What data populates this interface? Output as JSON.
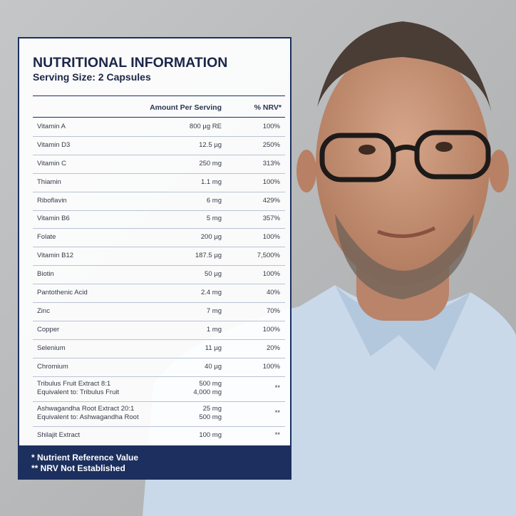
{
  "panel": {
    "title": "NUTRITIONAL INFORMATION",
    "subtitle": "Serving Size: 2 Capsules"
  },
  "table": {
    "header": [
      "Amount Per Serving",
      "% NRV*"
    ],
    "rows": [
      {
        "name": [
          "Vitamin A"
        ],
        "amount": [
          "800 µg RE"
        ],
        "nrv": "100%"
      },
      {
        "name": [
          "Vitamin D3"
        ],
        "amount": [
          "12.5 µg"
        ],
        "nrv": "250%"
      },
      {
        "name": [
          "Vitamin C"
        ],
        "amount": [
          "250 mg"
        ],
        "nrv": "313%"
      },
      {
        "name": [
          "Thiamin"
        ],
        "amount": [
          "1.1 mg"
        ],
        "nrv": "100%"
      },
      {
        "name": [
          "Riboflavin"
        ],
        "amount": [
          "6 mg"
        ],
        "nrv": "429%"
      },
      {
        "name": [
          "Vitamin B6"
        ],
        "amount": [
          "5 mg"
        ],
        "nrv": "357%"
      },
      {
        "name": [
          "Folate"
        ],
        "amount": [
          "200 µg"
        ],
        "nrv": "100%"
      },
      {
        "name": [
          "Vitamin B12"
        ],
        "amount": [
          "187.5 µg"
        ],
        "nrv": "7,500%"
      },
      {
        "name": [
          "Biotin"
        ],
        "amount": [
          "50 µg"
        ],
        "nrv": "100%"
      },
      {
        "name": [
          "Pantothenic Acid"
        ],
        "amount": [
          "2.4 mg"
        ],
        "nrv": "40%"
      },
      {
        "name": [
          "Zinc"
        ],
        "amount": [
          "7 mg"
        ],
        "nrv": "70%"
      },
      {
        "name": [
          "Copper"
        ],
        "amount": [
          "1 mg"
        ],
        "nrv": "100%"
      },
      {
        "name": [
          "Selenium"
        ],
        "amount": [
          "11 µg"
        ],
        "nrv": "20%"
      },
      {
        "name": [
          "Chromium"
        ],
        "amount": [
          "40 µg"
        ],
        "nrv": "100%"
      },
      {
        "name": [
          "Tribulus Fruit Extract 8:1",
          "Equivalent to: Tribulus Fruit"
        ],
        "amount": [
          "500 mg",
          "4,000 mg"
        ],
        "nrv": "**"
      },
      {
        "name": [
          "Ashwagandha Root Extract 20:1",
          "Equivalent to: Ashwagandha Root"
        ],
        "amount": [
          "25 mg",
          "500 mg"
        ],
        "nrv": "**"
      },
      {
        "name": [
          "Shilajit Extract"
        ],
        "amount": [
          "100 mg"
        ],
        "nrv": "**"
      }
    ]
  },
  "footer": [
    "* Nutrient Reference Value",
    "** NRV Not Established"
  ]
}
